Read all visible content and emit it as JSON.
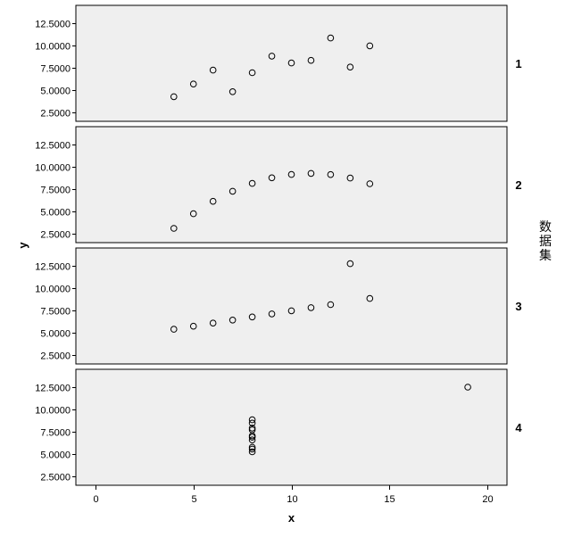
{
  "chart_data": {
    "type": "scatter",
    "xlabel": "x",
    "ylabel": "y",
    "facet_title": "数据集",
    "xlim": [
      -1,
      21
    ],
    "x_ticks": [
      0,
      5,
      10,
      15,
      20
    ],
    "ylim": [
      1.5,
      14.5
    ],
    "y_ticks": [
      2.5,
      5.0,
      7.5,
      10.0,
      12.5
    ],
    "y_tick_labels": [
      "2.5000",
      "5.0000",
      "7.5000",
      "10.0000",
      "12.5000"
    ],
    "panel_background": "#efefef",
    "marker_color": "#000000",
    "panels": [
      {
        "label": "1",
        "points": [
          [
            4,
            4.26
          ],
          [
            5,
            5.68
          ],
          [
            6,
            7.24
          ],
          [
            7,
            4.82
          ],
          [
            8,
            6.95
          ],
          [
            9,
            8.81
          ],
          [
            10,
            8.04
          ],
          [
            11,
            8.33
          ],
          [
            12,
            10.84
          ],
          [
            13,
            7.58
          ],
          [
            14,
            9.96
          ]
        ]
      },
      {
        "label": "2",
        "points": [
          [
            4,
            3.1
          ],
          [
            5,
            4.74
          ],
          [
            6,
            6.13
          ],
          [
            7,
            7.26
          ],
          [
            8,
            8.14
          ],
          [
            9,
            8.77
          ],
          [
            10,
            9.14
          ],
          [
            11,
            9.26
          ],
          [
            12,
            9.13
          ],
          [
            13,
            8.74
          ],
          [
            14,
            8.1
          ]
        ]
      },
      {
        "label": "3",
        "points": [
          [
            4,
            5.39
          ],
          [
            5,
            5.73
          ],
          [
            6,
            6.08
          ],
          [
            7,
            6.42
          ],
          [
            8,
            6.77
          ],
          [
            9,
            7.11
          ],
          [
            10,
            7.46
          ],
          [
            11,
            7.81
          ],
          [
            12,
            8.15
          ],
          [
            13,
            12.74
          ],
          [
            14,
            8.84
          ]
        ]
      },
      {
        "label": "4",
        "points": [
          [
            8,
            6.58
          ],
          [
            8,
            5.76
          ],
          [
            8,
            7.71
          ],
          [
            8,
            8.84
          ],
          [
            8,
            8.47
          ],
          [
            8,
            7.04
          ],
          [
            8,
            5.25
          ],
          [
            19,
            12.5
          ],
          [
            8,
            5.56
          ],
          [
            8,
            7.91
          ],
          [
            8,
            6.89
          ]
        ]
      }
    ]
  }
}
